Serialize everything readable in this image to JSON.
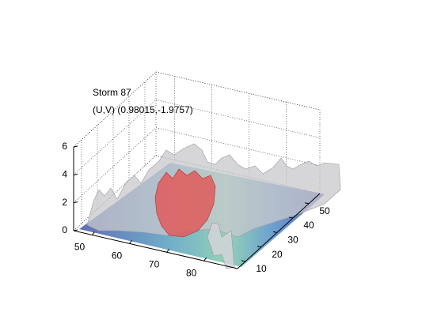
{
  "chart_data": {
    "type": "isosurface",
    "title": "Storm 87",
    "subtitle": "(U,V) (0.98015,-1.9757)",
    "xlim": [
      45,
      89
    ],
    "ylim": [
      5,
      57
    ],
    "zlim": [
      0,
      6
    ],
    "xticks": [
      50,
      60,
      70,
      80
    ],
    "yticks": [
      10,
      20,
      30,
      40,
      50
    ],
    "zticks": [
      0,
      2,
      4,
      6
    ],
    "grid": true
  }
}
